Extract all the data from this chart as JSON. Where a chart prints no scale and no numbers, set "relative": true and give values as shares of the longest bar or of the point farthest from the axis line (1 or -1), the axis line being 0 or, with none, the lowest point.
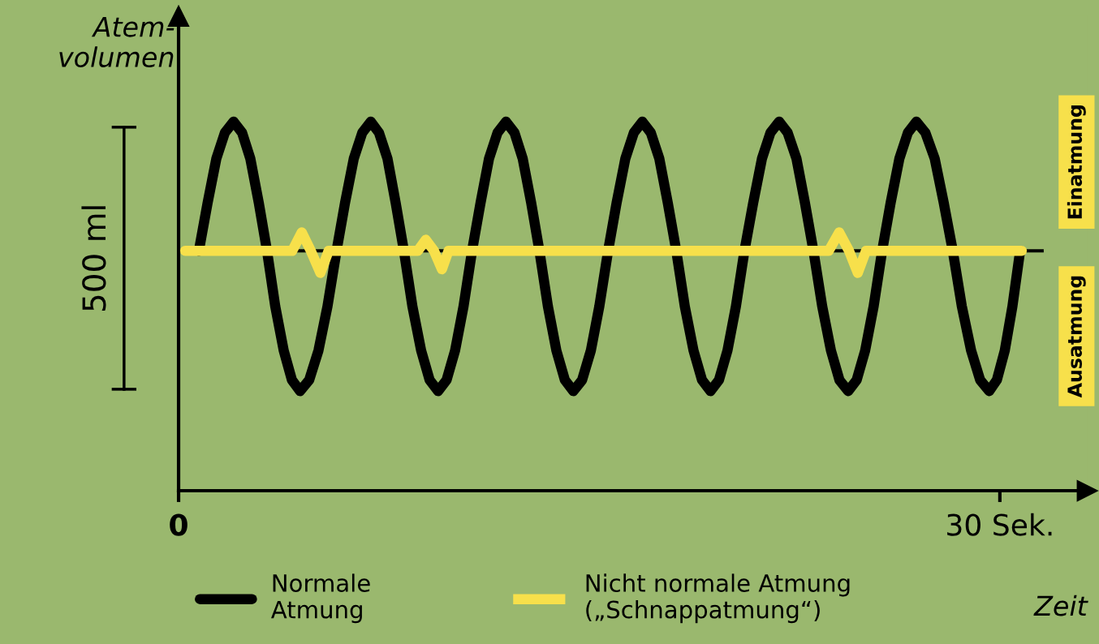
{
  "chart_data": {
    "type": "line",
    "relative": true,
    "ylabel": "Atem-\nvolumen",
    "xlabel": "Zeit",
    "xlim": [
      0,
      33.2
    ],
    "xticks": [
      0,
      {
        "value": 30,
        "label": "30 Sek."
      }
    ],
    "series": [
      {
        "name": "Normale\nAtmung",
        "color": "#000000",
        "x": [
          0.74,
          1.06,
          1.38,
          1.69,
          2.01,
          2.32,
          2.62,
          2.93,
          3.23,
          3.53,
          3.84,
          4.14,
          4.44,
          4.77,
          5.11,
          5.44,
          5.77,
          6.08,
          6.4,
          6.71,
          7.02,
          7.32,
          7.63,
          7.93,
          8.23,
          8.54,
          8.86,
          9.17,
          9.48,
          9.79,
          10.1,
          10.41,
          10.72,
          11.03,
          11.34,
          11.65,
          11.96,
          12.27,
          12.57,
          12.88,
          13.18,
          13.49,
          13.8,
          14.11,
          14.42,
          14.74,
          15.06,
          15.37,
          15.69,
          16.0,
          16.32,
          16.63,
          16.94,
          17.25,
          17.56,
          17.87,
          18.18,
          18.49,
          18.81,
          19.12,
          19.43,
          19.74,
          20.05,
          20.36,
          20.67,
          20.99,
          21.31,
          21.62,
          21.94,
          22.25,
          22.57,
          22.88,
          23.19,
          23.51,
          23.83,
          24.14,
          24.46,
          24.77,
          25.08,
          25.39,
          25.7,
          26.01,
          26.33,
          26.64,
          26.95,
          27.28,
          27.62,
          27.95,
          28.28,
          28.61,
          28.95,
          29.28,
          29.61,
          29.89,
          30.18,
          30.46,
          30.74
        ],
        "values": [
          0.65,
          0.78,
          0.9,
          0.97,
          1,
          0.97,
          0.9,
          0.78,
          0.65,
          0.5,
          0.38,
          0.3,
          0.27,
          0.3,
          0.38,
          0.5,
          0.65,
          0.78,
          0.9,
          0.97,
          1,
          0.97,
          0.9,
          0.78,
          0.65,
          0.5,
          0.38,
          0.3,
          0.27,
          0.3,
          0.38,
          0.5,
          0.65,
          0.78,
          0.9,
          0.97,
          1,
          0.97,
          0.9,
          0.78,
          0.65,
          0.5,
          0.38,
          0.3,
          0.27,
          0.3,
          0.38,
          0.5,
          0.65,
          0.78,
          0.9,
          0.97,
          1,
          0.97,
          0.9,
          0.78,
          0.65,
          0.5,
          0.38,
          0.3,
          0.27,
          0.3,
          0.38,
          0.5,
          0.65,
          0.78,
          0.9,
          0.97,
          1,
          0.97,
          0.9,
          0.78,
          0.65,
          0.5,
          0.38,
          0.3,
          0.27,
          0.3,
          0.38,
          0.5,
          0.65,
          0.78,
          0.9,
          0.97,
          1,
          0.97,
          0.9,
          0.78,
          0.65,
          0.5,
          0.38,
          0.3,
          0.27,
          0.3,
          0.38,
          0.5,
          0.65
        ]
      },
      {
        "name": "Nicht normale Atmung\n(„Schnappatmung“)",
        "color": "#f7e04b",
        "x": [
          0.24,
          4.15,
          4.5,
          4.83,
          5.18,
          5.48,
          8.74,
          9.03,
          9.33,
          9.62,
          9.86,
          23.75,
          24.13,
          24.49,
          24.81,
          25.11,
          30.8
        ],
        "values": [
          0.65,
          0.65,
          0.7,
          0.65,
          0.59,
          0.65,
          0.65,
          0.68,
          0.65,
          0.6,
          0.65,
          0.65,
          0.7,
          0.65,
          0.59,
          0.65,
          0.65
        ]
      }
    ],
    "ref_lines": [
      {
        "axis": "y",
        "value": 0.65,
        "color": "#000000"
      }
    ],
    "annotations": [
      "500 ml",
      "Einatmung",
      "Ausatmung"
    ],
    "legend": "bottom",
    "grid": false,
    "line_style": "solid"
  }
}
